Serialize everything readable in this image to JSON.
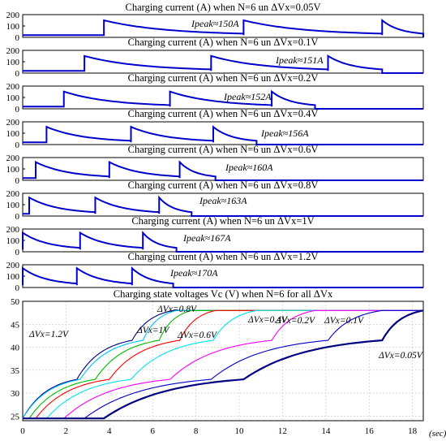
{
  "colors": {
    "current_trace": "#0000cc",
    "voltage_series": [
      "#000080",
      "#00c0ff",
      "#00bb00",
      "#ff0000",
      "#00e5ee",
      "#ff00ff",
      "#0000cc"
    ],
    "grid": "#c8c8c8",
    "axes": "#000000"
  },
  "chart_data": [
    {
      "type": "line",
      "panel": 1,
      "title": "Charging current (A) when N=6 un ΔVx=0.05V",
      "annotation": "Ipeak≈150A",
      "y_ticks": [
        "200",
        "100",
        "0"
      ],
      "ylim": [
        0,
        200
      ],
      "xlim": [
        0,
        18.5
      ],
      "peak_times": [
        3.75,
        10.2,
        16.6
      ],
      "end_time": 18.5,
      "peak": 150,
      "base": 20
    },
    {
      "type": "line",
      "panel": 2,
      "title": "Charging current (A) when N=6 un ΔVx=0.1V",
      "annotation": "Ipeak≈151A",
      "y_ticks": [
        "200",
        "100",
        "0"
      ],
      "ylim": [
        0,
        200
      ],
      "xlim": [
        0,
        18.5
      ],
      "peak_times": [
        2.85,
        8.7,
        14.1
      ],
      "end_time": 16.6,
      "peak": 151,
      "base": 20
    },
    {
      "type": "line",
      "panel": 3,
      "title": "Charging current (A) when N=6 un ΔVx=0.2V",
      "annotation": "Ipeak≈152A",
      "y_ticks": [
        "200",
        "100",
        "0"
      ],
      "ylim": [
        0,
        200
      ],
      "xlim": [
        0,
        18.5
      ],
      "peak_times": [
        1.9,
        6.8,
        11.5
      ],
      "end_time": 13.5,
      "peak": 152,
      "base": 20
    },
    {
      "type": "line",
      "panel": 4,
      "title": "Charging current (A) when N=6 un ΔVx=0.4V",
      "annotation": "Ipeak≈156A",
      "y_ticks": [
        "200",
        "100",
        "0"
      ],
      "ylim": [
        0,
        200
      ],
      "xlim": [
        0,
        18.5
      ],
      "peak_times": [
        1.1,
        5.0,
        8.8
      ],
      "end_time": 10.8,
      "peak": 156,
      "base": 20
    },
    {
      "type": "line",
      "panel": 5,
      "title": "Charging current (A) when N=6 un ΔVx=0.6V",
      "annotation": "Ipeak≈160A",
      "y_ticks": [
        "200",
        "100",
        "0"
      ],
      "ylim": [
        0,
        200
      ],
      "xlim": [
        0,
        18.5
      ],
      "peak_times": [
        0.6,
        4.0,
        7.25
      ],
      "end_time": 8.9,
      "peak": 160,
      "base": 20
    },
    {
      "type": "line",
      "panel": 6,
      "title": "Charging current (A) when N=6 un ΔVx=0.8V",
      "annotation": "Ipeak≈163A",
      "y_ticks": [
        "200",
        "100",
        "0"
      ],
      "ylim": [
        0,
        200
      ],
      "xlim": [
        0,
        18.5
      ],
      "peak_times": [
        0.3,
        3.35,
        6.3
      ],
      "end_time": 7.8,
      "peak": 163,
      "base": 20
    },
    {
      "type": "line",
      "panel": 7,
      "title": "Charging current (A) when N=6 un ΔVx=1V",
      "annotation": "Ipeak≈167A",
      "y_ticks": [
        "200",
        "100",
        "0"
      ],
      "ylim": [
        0,
        200
      ],
      "xlim": [
        0,
        18.5
      ],
      "peak_times": [
        0.0,
        2.65,
        5.55
      ],
      "end_time": 7.1,
      "peak": 167,
      "base": 20
    },
    {
      "type": "line",
      "panel": 8,
      "title": "Charging current (A) when N=6 un ΔVx=1.2V",
      "annotation": "Ipeak≈170A",
      "y_ticks": [
        "200",
        "100",
        "0"
      ],
      "ylim": [
        0,
        200
      ],
      "xlim": [
        0,
        18.5
      ],
      "peak_times": [
        0.0,
        2.5,
        5.05
      ],
      "end_time": 6.95,
      "peak": 170,
      "base": 20
    },
    {
      "type": "line",
      "panel": 9,
      "title": "Charging state voltages Vc (V) when N=6 for all ΔVx",
      "xlabel": "(sec)",
      "x_ticks": [
        0,
        2,
        4,
        6,
        8,
        10,
        12,
        14,
        16,
        18
      ],
      "y_ticks": [
        25,
        30,
        35,
        40,
        45,
        50
      ],
      "xlim": [
        0,
        18.5
      ],
      "ylim": [
        24,
        50
      ],
      "grid": true,
      "series": [
        {
          "name": "ΔVx=1.2V",
          "step_times": [
            0.0,
            2.5,
            5.05
          ],
          "end_time": 6.95
        },
        {
          "name": "ΔVx=1V",
          "step_times": [
            0.0,
            2.65,
            5.55
          ],
          "end_time": 7.1
        },
        {
          "name": "ΔVx=0.8V",
          "step_times": [
            0.3,
            3.35,
            6.3
          ],
          "end_time": 7.8
        },
        {
          "name": "ΔVx=0.6V",
          "step_times": [
            0.6,
            4.0,
            7.25
          ],
          "end_time": 8.9
        },
        {
          "name": "ΔVx=0.4V",
          "step_times": [
            1.1,
            5.0,
            8.8
          ],
          "end_time": 10.8
        },
        {
          "name": "ΔVx=0.2V",
          "step_times": [
            1.9,
            6.8,
            11.5
          ],
          "end_time": 13.5
        },
        {
          "name": "ΔVx=0.1V",
          "step_times": [
            2.85,
            8.7,
            14.1
          ],
          "end_time": 16.6
        },
        {
          "name": "ΔVx=0.05V",
          "step_times": [
            3.75,
            10.2,
            16.6
          ],
          "end_time": 18.5
        }
      ],
      "levels": [
        24.5,
        33,
        41.5,
        48
      ]
    }
  ]
}
